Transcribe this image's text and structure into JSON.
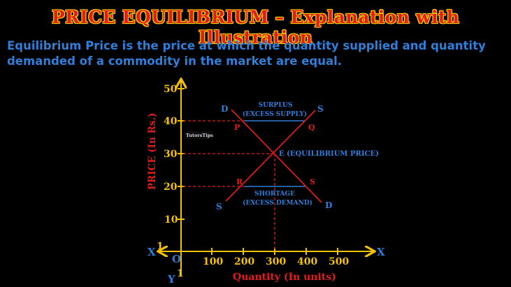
{
  "title": "PRICE EQUILIBRIUM – Explanation with Illustration",
  "description": "Equilibrium Price is the price at which the quantity supplied and quantity demanded of a commodity in the market are equal.",
  "diagram": {
    "y_axis_label": "PRICE (In Rs.)",
    "x_axis_label": "Quantity (In units)",
    "y_ticks": [
      "10",
      "20",
      "30",
      "40",
      "50"
    ],
    "x_ticks": [
      "100",
      "200",
      "300",
      "400",
      "500"
    ],
    "origin": "O",
    "x_pos": "X",
    "x_neg": "X",
    "x_neg_sup": "1",
    "y_neg": "Y",
    "y_neg_sup": "1",
    "demand_top": "D",
    "demand_bottom": "D",
    "supply_top": "S",
    "supply_bottom": "S",
    "point_p": "P",
    "point_q": "Q",
    "point_r": "R",
    "point_s": "S",
    "point_e": "E (EQUILIBRIUM PRICE)",
    "surplus_1": "SURPLUS",
    "surplus_2": "(EXCESS SUPPLY)",
    "shortage_1": "SHORTAGE",
    "shortage_2": "(EXCESS DEMAND)",
    "watermark": "TutorsTips"
  },
  "colors": {
    "axis": "#f2c200",
    "curves": "#e41b1b",
    "labels_blue": "#2f7ed8",
    "title": "#e41b1b"
  }
}
